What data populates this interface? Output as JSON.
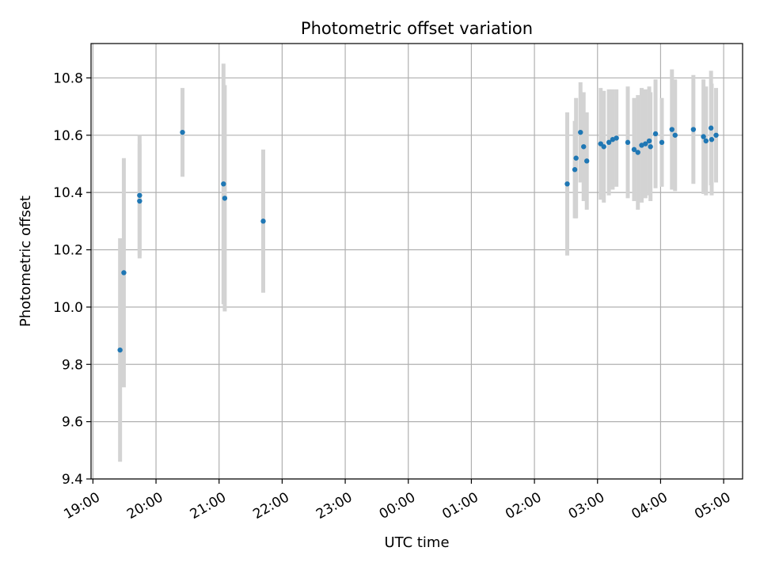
{
  "chart_data": {
    "type": "scatter",
    "title": "Photometric offset variation",
    "xlabel": "UTC time",
    "ylabel": "Photometric offset",
    "xlim": [
      -0.03,
      10.3
    ],
    "ylim": [
      9.4,
      10.92
    ],
    "x_ticks": [
      {
        "v": 0,
        "label": "19:00"
      },
      {
        "v": 1,
        "label": "20:00"
      },
      {
        "v": 2,
        "label": "21:00"
      },
      {
        "v": 3,
        "label": "22:00"
      },
      {
        "v": 4,
        "label": "23:00"
      },
      {
        "v": 5,
        "label": "00:00"
      },
      {
        "v": 6,
        "label": "01:00"
      },
      {
        "v": 7,
        "label": "02:00"
      },
      {
        "v": 8,
        "label": "03:00"
      },
      {
        "v": 9,
        "label": "04:00"
      },
      {
        "v": 10,
        "label": "05:00"
      }
    ],
    "y_ticks": [
      {
        "v": 9.4,
        "label": "9.4"
      },
      {
        "v": 9.6,
        "label": "9.6"
      },
      {
        "v": 9.8,
        "label": "9.8"
      },
      {
        "v": 10.0,
        "label": "10.0"
      },
      {
        "v": 10.2,
        "label": "10.2"
      },
      {
        "v": 10.4,
        "label": "10.4"
      },
      {
        "v": 10.6,
        "label": "10.6"
      },
      {
        "v": 10.8,
        "label": "10.8"
      }
    ],
    "grid": true,
    "colors": {
      "points": "#1f77b4",
      "errorbars": "#d3d3d3",
      "grid": "#b0b0b0"
    },
    "points": [
      {
        "x": 0.43,
        "y": 9.85,
        "err": 0.39
      },
      {
        "x": 0.49,
        "y": 10.12,
        "err": 0.4
      },
      {
        "x": 0.74,
        "y": 10.39,
        "err": 0.21
      },
      {
        "x": 0.74,
        "y": 10.37,
        "err": 0.2
      },
      {
        "x": 1.42,
        "y": 10.61,
        "err": 0.155
      },
      {
        "x": 2.07,
        "y": 10.43,
        "err": 0.42
      },
      {
        "x": 2.09,
        "y": 10.38,
        "err": 0.395
      },
      {
        "x": 2.7,
        "y": 10.3,
        "err": 0.25
      },
      {
        "x": 7.52,
        "y": 10.43,
        "err": 0.25
      },
      {
        "x": 7.64,
        "y": 10.48,
        "err": 0.17
      },
      {
        "x": 7.66,
        "y": 10.52,
        "err": 0.21
      },
      {
        "x": 7.73,
        "y": 10.61,
        "err": 0.175
      },
      {
        "x": 7.78,
        "y": 10.56,
        "err": 0.19
      },
      {
        "x": 7.83,
        "y": 10.51,
        "err": 0.17
      },
      {
        "x": 8.05,
        "y": 10.57,
        "err": 0.195
      },
      {
        "x": 8.1,
        "y": 10.56,
        "err": 0.195
      },
      {
        "x": 8.18,
        "y": 10.575,
        "err": 0.185
      },
      {
        "x": 8.24,
        "y": 10.585,
        "err": 0.175
      },
      {
        "x": 8.3,
        "y": 10.59,
        "err": 0.17
      },
      {
        "x": 8.48,
        "y": 10.575,
        "err": 0.195
      },
      {
        "x": 8.58,
        "y": 10.55,
        "err": 0.18
      },
      {
        "x": 8.64,
        "y": 10.54,
        "err": 0.2
      },
      {
        "x": 8.7,
        "y": 10.565,
        "err": 0.2
      },
      {
        "x": 8.76,
        "y": 10.57,
        "err": 0.19
      },
      {
        "x": 8.82,
        "y": 10.58,
        "err": 0.19
      },
      {
        "x": 8.84,
        "y": 10.56,
        "err": 0.19
      },
      {
        "x": 8.92,
        "y": 10.605,
        "err": 0.19
      },
      {
        "x": 9.02,
        "y": 10.575,
        "err": 0.155
      },
      {
        "x": 9.18,
        "y": 10.62,
        "err": 0.21
      },
      {
        "x": 9.23,
        "y": 10.6,
        "err": 0.195
      },
      {
        "x": 9.52,
        "y": 10.62,
        "err": 0.19
      },
      {
        "x": 9.68,
        "y": 10.595,
        "err": 0.2
      },
      {
        "x": 9.72,
        "y": 10.58,
        "err": 0.19
      },
      {
        "x": 9.8,
        "y": 10.625,
        "err": 0.2
      },
      {
        "x": 9.81,
        "y": 10.585,
        "err": 0.195
      },
      {
        "x": 9.88,
        "y": 10.6,
        "err": 0.165
      }
    ]
  }
}
